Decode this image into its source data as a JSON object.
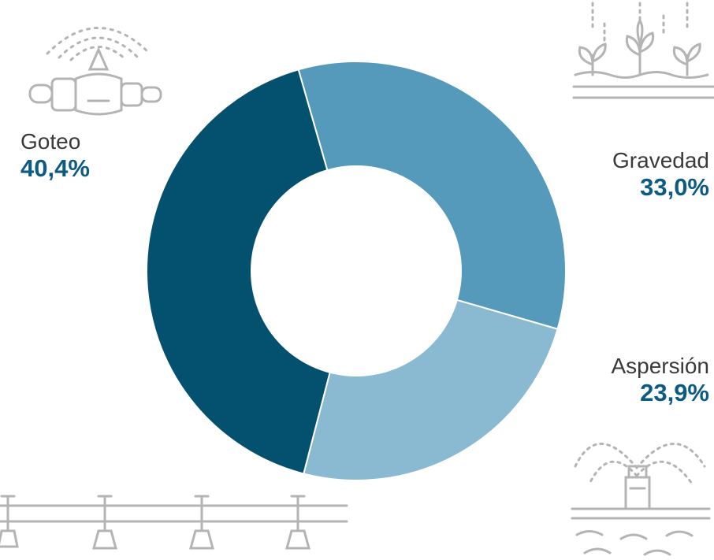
{
  "chart_data": {
    "type": "donut",
    "slices": [
      {
        "label": "Gravedad",
        "value_text": "33,0%",
        "value": 33.0,
        "color": "#5599bb"
      },
      {
        "label": "Aspersión",
        "value_text": "23,9%",
        "value": 23.9,
        "color": "#8ab9d2"
      },
      {
        "label": "Goteo",
        "value_text": "40,4%",
        "value": 40.4,
        "color": "#04506f"
      }
    ],
    "start_angle_deg": -16,
    "direction": "clockwise"
  },
  "icons": {
    "goteo": "drip-irrigation-icon",
    "gravedad": "gravity-irrigation-plants-icon",
    "aspersion": "sprinkler-icon",
    "pipeline": "pipeline-sprinklers-icon"
  },
  "colors": {
    "label_text": "#3a3a3a",
    "value_text": "#0b5b82",
    "icon_stroke": "#b4b4b4"
  }
}
